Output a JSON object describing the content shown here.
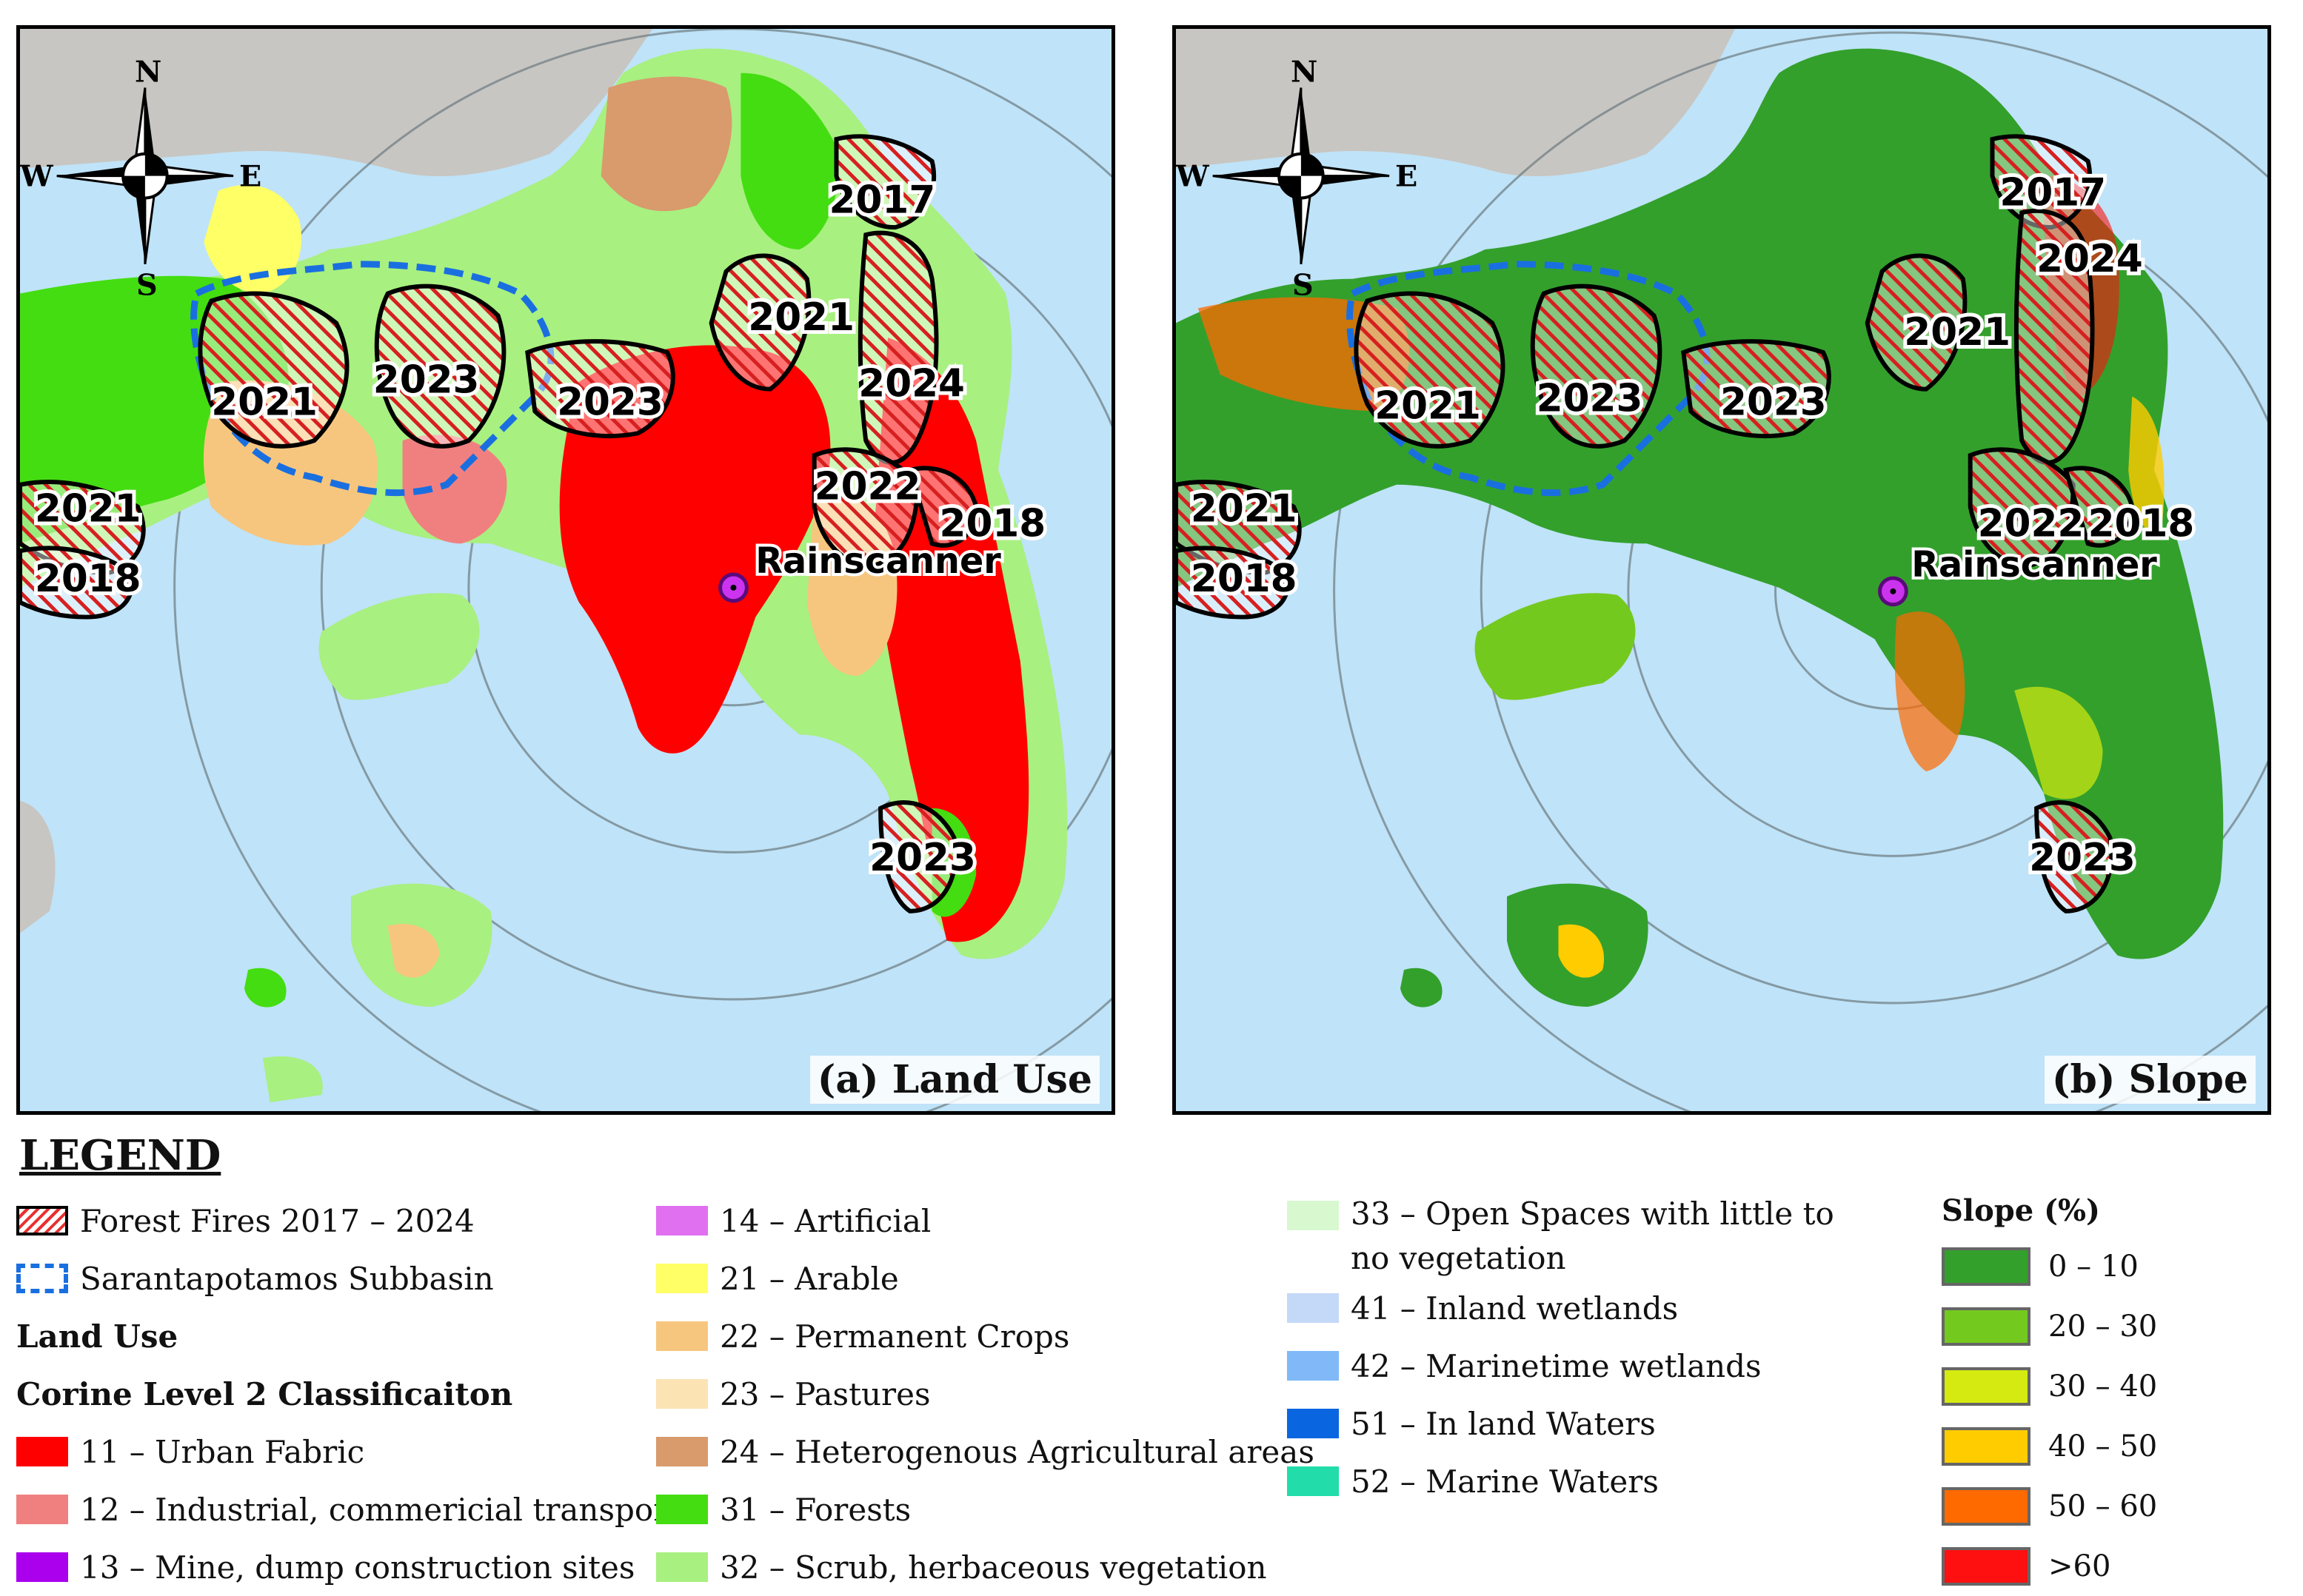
{
  "panel_a": {
    "label": "(a) Land Use"
  },
  "panel_b": {
    "label": "(b) Slope"
  },
  "compass": {
    "n": "N",
    "s": "S",
    "e": "E",
    "w": "W"
  },
  "station": {
    "name": "Rainscanner"
  },
  "fires_a": [
    {
      "year": "2017"
    },
    {
      "year": "2021"
    },
    {
      "year": "2024"
    },
    {
      "year": "2021"
    },
    {
      "year": "2023"
    },
    {
      "year": "2023"
    },
    {
      "year": "2022"
    },
    {
      "year": "2018"
    },
    {
      "year": "2021"
    },
    {
      "year": "2018"
    },
    {
      "year": "2023"
    }
  ],
  "fires_b": [
    {
      "year": "2017"
    },
    {
      "year": "2024"
    },
    {
      "year": "2021"
    },
    {
      "year": "2021"
    },
    {
      "year": "2023"
    },
    {
      "year": "2023"
    },
    {
      "year": "2022"
    },
    {
      "year": "2018"
    },
    {
      "year": "2021"
    },
    {
      "year": "2018"
    },
    {
      "year": "2023"
    }
  ],
  "legend": {
    "title": "LEGEND",
    "fires": "Forest Fires 2017 – 2024",
    "subbasin": "Sarantapotamos Subbasin",
    "land_use": "Land Use",
    "corine": "Corine Level 2 Classificaiton",
    "classes": [
      {
        "label": "11 – Urban Fabric",
        "color": "#ff0000"
      },
      {
        "label": "12 – Industrial, commericial transport",
        "color": "#f08080"
      },
      {
        "label": "13 – Mine, dump construction sites",
        "color": "#aa00ee"
      },
      {
        "label": "14 – Artificial",
        "color": "#e070f0"
      },
      {
        "label": "21 – Arable",
        "color": "#ffff66"
      },
      {
        "label": "22 – Permanent Crops",
        "color": "#f7c67e"
      },
      {
        "label": "23 – Pastures",
        "color": "#fbe3b4"
      },
      {
        "label": "24 – Heterogenous Agricultural areas",
        "color": "#d99a6c"
      },
      {
        "label": "31 – Forests",
        "color": "#44dd11"
      },
      {
        "label": "32 – Scrub, herbaceous vegetation",
        "color": "#a8f080"
      },
      {
        "label": "33 – Open Spaces with little to no vegetation",
        "color": "#d8f8d0"
      },
      {
        "label": "41 – Inland wetlands",
        "color": "#c4d8f8"
      },
      {
        "label": "42 – Marinetime wetlands",
        "color": "#80b8f8"
      },
      {
        "label": "51 – In land Waters",
        "color": "#0a66e0"
      },
      {
        "label": "52 – Marine Waters",
        "color": "#22ddaa"
      }
    ],
    "slope_title": "Slope (%)",
    "slope": [
      {
        "label": "0 – 10",
        "color": "#33a02c"
      },
      {
        "label": "20 – 30",
        "color": "#74c91f"
      },
      {
        "label": "30 – 40",
        "color": "#d4ea10"
      },
      {
        "label": "40 – 50",
        "color": "#ffcc00"
      },
      {
        "label": "50 – 60",
        "color": "#ff6a00"
      },
      {
        "label": ">60",
        "color": "#ff1010"
      }
    ]
  }
}
